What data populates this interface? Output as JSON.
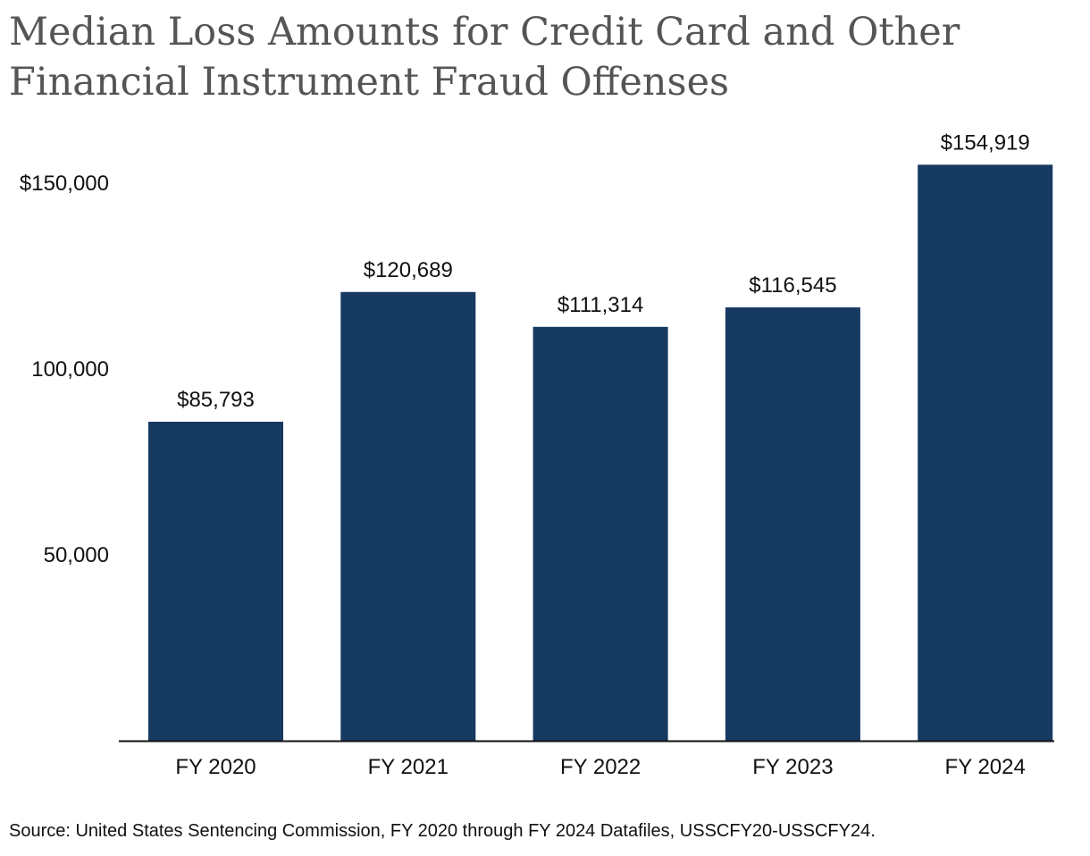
{
  "chart_data": {
    "type": "bar",
    "title": "Median Loss Amounts for Credit Card and Other Financial Instrument Fraud Offenses",
    "xlabel": "",
    "ylabel": "",
    "categories": [
      "FY 2020",
      "FY 2021",
      "FY 2022",
      "FY 2023",
      "FY 2024"
    ],
    "values": [
      85793,
      120689,
      111314,
      116545,
      154919
    ],
    "data_labels": [
      "$85,793",
      "$120,689",
      "$111,314",
      "$116,545",
      "$154,919"
    ],
    "yticks": [
      50000,
      100000,
      150000
    ],
    "ytick_labels": [
      "50,000",
      "100,000",
      "$150,000"
    ],
    "ylim": [
      0,
      155000
    ],
    "grid": false,
    "legend": "none",
    "bar_color": "#163A62",
    "axis_color": "#111111"
  },
  "source_note": "Source: United States Sentencing Commission, FY 2020 through FY 2024 Datafiles, USSCFY20-USSCFY24."
}
